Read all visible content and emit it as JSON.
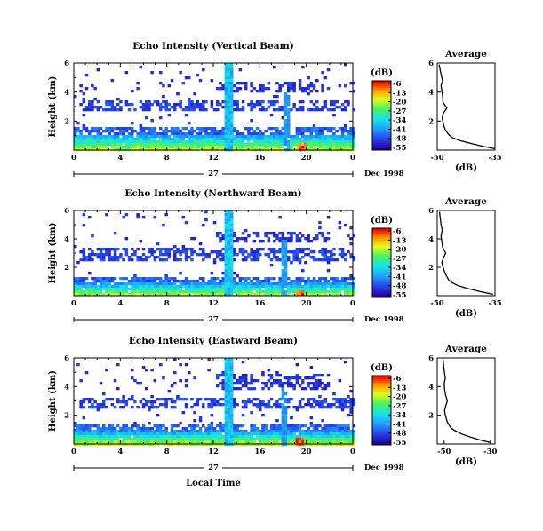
{
  "chart_data": [
    {
      "type": "heatmap",
      "title": "Echo Intensity (Vertical Beam)",
      "ylabel": "Height (km)",
      "xlim": [
        0,
        24
      ],
      "ylim": [
        0,
        6
      ],
      "x_ticks": [
        "0",
        "4",
        "8",
        "12",
        "16",
        "20",
        "0"
      ],
      "y_ticks": [
        "2",
        "4",
        "6"
      ],
      "day_label": "27",
      "date_label": "Dec 1998",
      "colorbar": {
        "unit": "(dB)",
        "ticks": [
          "-6",
          "-13",
          "-20",
          "-27",
          "-34",
          "-41",
          "-48",
          "-55"
        ]
      },
      "features": {
        "echo_base_top_km": 1.2,
        "cloud_layer_km": [
          2.8,
          3.6
        ],
        "upper_layer_km": [
          4.0,
          4.8
        ],
        "vertical_streak_hours": [
          13.3,
          18.2
        ],
        "strong_spot_hour": 19.5
      },
      "profile": {
        "title": "Average",
        "xlabel": "(dB)",
        "x_ticks": [
          "-50",
          "-35"
        ],
        "y_ticks": [
          "2",
          "4",
          "6"
        ],
        "xlim": [
          -50,
          -35
        ],
        "ylim": [
          0,
          6
        ],
        "x": [
          -35,
          -38,
          -41,
          -44,
          -46,
          -47,
          -47.5,
          -48,
          -48.3,
          -48.5,
          -48.7,
          -48.5,
          -47.5,
          -48.5,
          -48.6,
          -48.8,
          -49,
          -48.6,
          -48.9,
          -49.2,
          -49.5
        ],
        "y": [
          0.1,
          0.25,
          0.45,
          0.65,
          0.85,
          1.05,
          1.25,
          1.45,
          1.7,
          1.95,
          2.2,
          2.5,
          2.9,
          3.3,
          3.7,
          4.1,
          4.45,
          4.75,
          5.1,
          5.45,
          5.9
        ]
      }
    },
    {
      "type": "heatmap",
      "title": "Echo Intensity (Northward Beam)",
      "ylabel": "Height (km)",
      "xlim": [
        0,
        24
      ],
      "ylim": [
        0,
        6
      ],
      "x_ticks": [
        "0",
        "4",
        "8",
        "12",
        "16",
        "20",
        "0"
      ],
      "y_ticks": [
        "2",
        "4",
        "6"
      ],
      "day_label": "27",
      "date_label": "Dec 1998",
      "colorbar": {
        "unit": "(dB)",
        "ticks": [
          "-6",
          "-13",
          "-20",
          "-27",
          "-34",
          "-41",
          "-48",
          "-55"
        ]
      },
      "features": {
        "echo_base_top_km": 1.0,
        "cloud_layer_km": [
          2.6,
          3.4
        ],
        "upper_layer_km": [
          3.8,
          4.6
        ],
        "vertical_streak_hours": [
          13.2,
          18.0
        ],
        "strong_spot_hour": 19.3
      },
      "profile": {
        "title": "Average",
        "xlabel": "(dB)",
        "x_ticks": [
          "-50",
          "-35"
        ],
        "y_ticks": [
          "2",
          "4",
          "6"
        ],
        "xlim": [
          -50,
          -35
        ],
        "ylim": [
          0,
          6
        ],
        "x": [
          -35.5,
          -39,
          -42,
          -44.5,
          -46,
          -47,
          -47.5,
          -48,
          -48.3,
          -48.6,
          -48.8,
          -48.4,
          -47.8,
          -48.6,
          -48.8,
          -49,
          -48.7,
          -49,
          -49.2,
          -49.4
        ],
        "y": [
          0.1,
          0.3,
          0.5,
          0.7,
          0.9,
          1.1,
          1.35,
          1.6,
          1.85,
          2.1,
          2.35,
          2.65,
          3.0,
          3.4,
          3.8,
          4.2,
          4.6,
          5.0,
          5.4,
          5.9
        ]
      }
    },
    {
      "type": "heatmap",
      "title": "Echo Intensity (Eastward Beam)",
      "ylabel": "Height (km)",
      "xlabel": "Local Time",
      "xlim": [
        0,
        24
      ],
      "ylim": [
        0,
        6
      ],
      "x_ticks": [
        "0",
        "4",
        "8",
        "12",
        "16",
        "20",
        "0"
      ],
      "y_ticks": [
        "2",
        "4",
        "6"
      ],
      "day_label": "27",
      "date_label": "Dec 1998",
      "colorbar": {
        "unit": "(dB)",
        "ticks": [
          "-6",
          "-13",
          "-20",
          "-27",
          "-34",
          "-41",
          "-48",
          "-55"
        ]
      },
      "features": {
        "echo_base_top_km": 1.0,
        "cloud_layer_km": [
          2.5,
          3.4
        ],
        "upper_layer_km": [
          3.9,
          5.0
        ],
        "vertical_streak_hours": [
          13.2,
          18.0
        ],
        "strong_spot_hour": 19.4
      },
      "profile": {
        "title": "Average",
        "xlabel": "(dB)",
        "x_ticks": [
          "-50",
          "-30"
        ],
        "y_ticks": [
          "2",
          "4",
          "6"
        ],
        "xlim": [
          -53,
          -28
        ],
        "ylim": [
          0,
          6
        ],
        "x": [
          -30,
          -35,
          -39,
          -42.5,
          -45,
          -47,
          -48,
          -48.8,
          -49.2,
          -49.6,
          -49.8,
          -49.3,
          -48.6,
          -49.4,
          -49.8,
          -50,
          -49.5,
          -49.9,
          -50.2,
          -50.5
        ],
        "y": [
          0.1,
          0.3,
          0.5,
          0.7,
          0.9,
          1.1,
          1.35,
          1.6,
          1.85,
          2.1,
          2.35,
          2.65,
          3.0,
          3.4,
          3.8,
          4.2,
          4.6,
          5.0,
          5.4,
          5.9
        ]
      }
    }
  ]
}
